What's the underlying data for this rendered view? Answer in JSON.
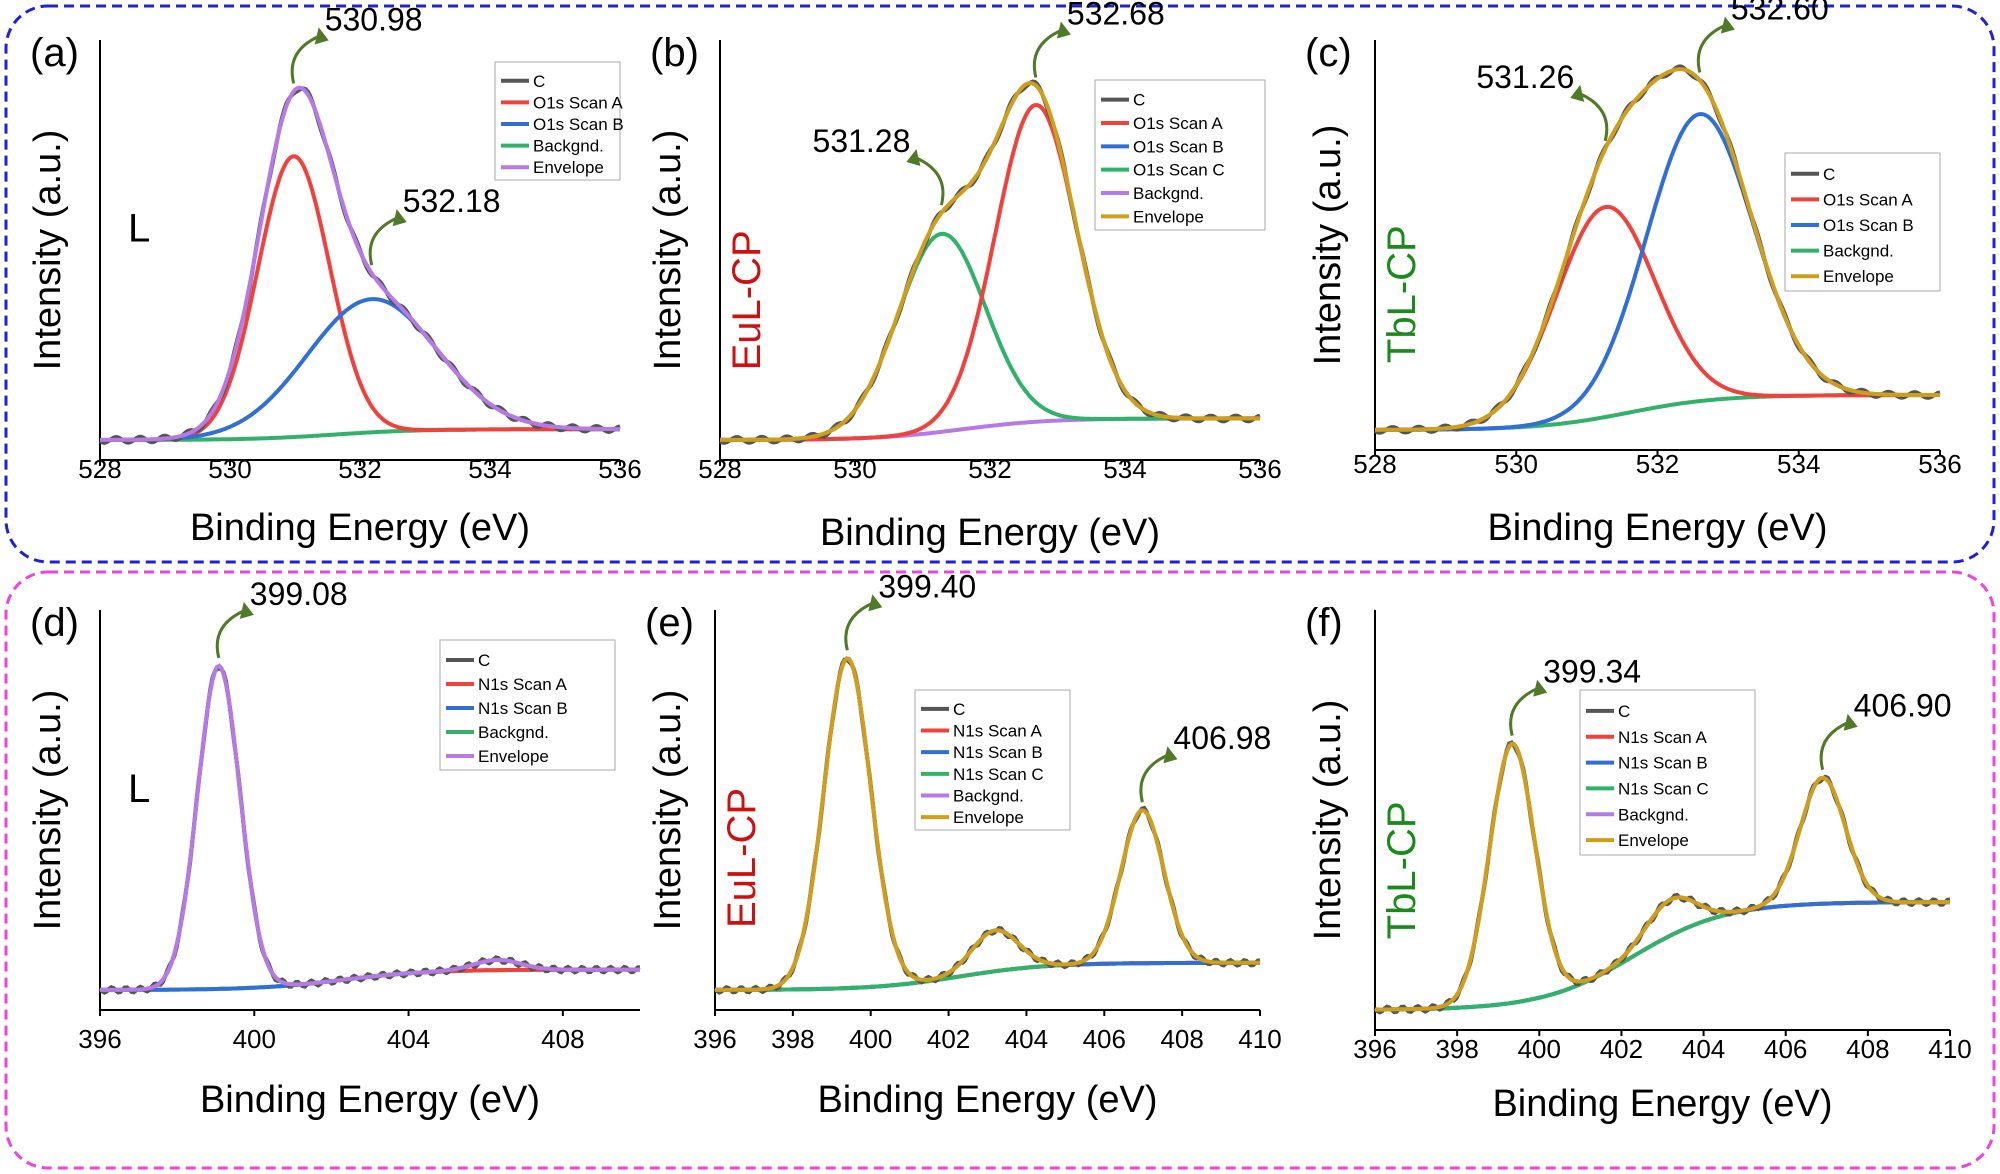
{
  "colors": {
    "C": "#555555",
    "scanA": "#f0413c",
    "scanB": "#2f6fd6",
    "scanC": "#2fb36b",
    "backgnd": "#33b06a",
    "backgndPurple": "#b57ae6",
    "envelopePurple": "#b57ae6",
    "envelopeGold": "#cf9f1c",
    "frameTop": "#2020d8",
    "frameBottom": "#ee44dd",
    "sampleEu": "#cc1111",
    "sampleTb": "#1a8a1a",
    "arrow": "#4f7a28"
  },
  "axis_common": {
    "xlabel": "Binding Energy (eV)",
    "ylabel": "Intensity (a.u.)"
  },
  "chart_data": [
    {
      "type": "line",
      "panel": "(a)",
      "sample": "L",
      "xlim": [
        528,
        536
      ],
      "xticks": [
        "528",
        "530",
        "532",
        "534",
        "536"
      ],
      "legend": [
        "C",
        "O1s Scan A",
        "O1s Scan B",
        "Backgnd.",
        "Envelope"
      ],
      "series": [
        {
          "name": "O1s Scan A",
          "center": 530.98,
          "height": 0.78,
          "width": 0.55
        },
        {
          "name": "O1s Scan B",
          "center": 532.18,
          "height": 0.37,
          "width": 1.0
        }
      ],
      "background": [
        0.0,
        0.03
      ],
      "annotations": [
        {
          "text": "530.98",
          "x": 530.98
        },
        {
          "text": "532.18",
          "x": 532.18
        }
      ]
    },
    {
      "type": "line",
      "panel": "(b)",
      "sample": "EuL-CP",
      "xlim": [
        528,
        536
      ],
      "xticks": [
        "528",
        "530",
        "532",
        "534",
        "536"
      ],
      "legend": [
        "C",
        "O1s Scan A",
        "O1s Scan B",
        "O1s Scan C",
        "Backgnd.",
        "Envelope"
      ],
      "series": [
        {
          "name": "O1s Scan C",
          "center": 531.28,
          "height": 0.55,
          "width": 0.65
        },
        {
          "name": "O1s Scan A",
          "center": 532.68,
          "height": 0.88,
          "width": 0.6
        }
      ],
      "background": [
        0.0,
        0.06
      ],
      "annotations": [
        {
          "text": "531.28",
          "x": 531.28
        },
        {
          "text": "532.68",
          "x": 532.68
        }
      ]
    },
    {
      "type": "line",
      "panel": "(c)",
      "sample": "TbL-CP",
      "xlim": [
        528,
        536
      ],
      "xticks": [
        "528",
        "530",
        "532",
        "534",
        "536"
      ],
      "legend": [
        "C",
        "O1s Scan A",
        "O1s Scan B",
        "Backgnd.",
        "Envelope"
      ],
      "series": [
        {
          "name": "O1s Scan A",
          "center": 531.26,
          "height": 0.6,
          "width": 0.7
        },
        {
          "name": "O1s Scan B",
          "center": 532.6,
          "height": 0.82,
          "width": 0.75
        }
      ],
      "background": [
        0.0,
        0.1
      ],
      "annotations": [
        {
          "text": "531.26",
          "x": 531.26
        },
        {
          "text": "532.60",
          "x": 532.6
        }
      ]
    },
    {
      "type": "line",
      "panel": "(d)",
      "sample": "L",
      "xlim": [
        396,
        410
      ],
      "xticks": [
        "396",
        "400",
        "404",
        "408"
      ],
      "legend": [
        "C",
        "N1s Scan A",
        "N1s Scan B",
        "Backgnd.",
        "Envelope"
      ],
      "series": [
        {
          "name": "N1s Scan A",
          "center": 399.08,
          "height": 0.95,
          "width": 0.55
        },
        {
          "name": "N1s Scan B",
          "center": 406.3,
          "height": 0.03,
          "width": 0.6
        }
      ],
      "background": [
        0.0,
        0.06
      ],
      "annotations": [
        {
          "text": "399.08",
          "x": 399.08
        }
      ]
    },
    {
      "type": "line",
      "panel": "(e)",
      "sample": "EuL-CP",
      "xlim": [
        396,
        410
      ],
      "xticks": [
        "396",
        "398",
        "400",
        "402",
        "404",
        "406",
        "408",
        "410"
      ],
      "legend": [
        "C",
        "N1s Scan A",
        "N1s Scan B",
        "N1s Scan C",
        "Backgnd.",
        "Envelope"
      ],
      "series": [
        {
          "name": "N1s Scan A",
          "center": 399.4,
          "height": 0.97,
          "width": 0.6
        },
        {
          "name": "N1s Scan B",
          "center": 403.2,
          "height": 0.12,
          "width": 0.6
        },
        {
          "name": "N1s Scan C",
          "center": 406.98,
          "height": 0.45,
          "width": 0.55
        }
      ],
      "background": [
        0.0,
        0.08
      ],
      "annotations": [
        {
          "text": "399.40",
          "x": 399.4
        },
        {
          "text": "406.98",
          "x": 406.98
        }
      ]
    },
    {
      "type": "line",
      "panel": "(f)",
      "sample": "TbL-CP",
      "xlim": [
        396,
        410
      ],
      "xticks": [
        "396",
        "398",
        "400",
        "402",
        "404",
        "406",
        "408",
        "410"
      ],
      "legend": [
        "C",
        "N1s Scan A",
        "N1s Scan B",
        "N1s Scan C",
        "Backgnd.",
        "Envelope"
      ],
      "series": [
        {
          "name": "N1s Scan A",
          "center": 399.34,
          "height": 0.72,
          "width": 0.55
        },
        {
          "name": "N1s Scan B",
          "center": 403.2,
          "height": 0.1,
          "width": 0.6
        },
        {
          "name": "N1s Scan C",
          "center": 406.9,
          "height": 0.35,
          "width": 0.55
        }
      ],
      "background": [
        0.0,
        0.3
      ],
      "annotations": [
        {
          "text": "399.34",
          "x": 399.34
        },
        {
          "text": "406.90",
          "x": 406.9
        }
      ]
    }
  ]
}
